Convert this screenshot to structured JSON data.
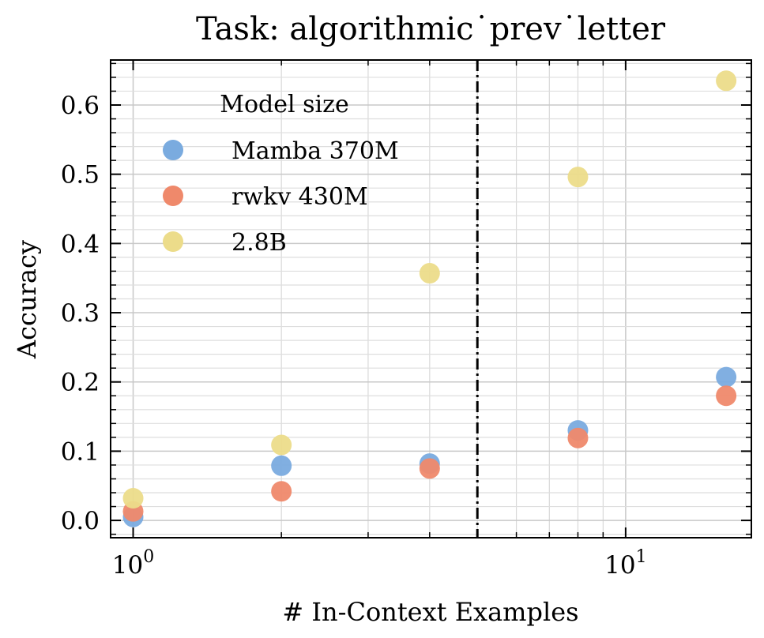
{
  "chart_data": {
    "type": "scatter",
    "title": "Task: algorithmic˙prev˙letter",
    "xlabel": "# In-Context Examples",
    "ylabel": "Accuracy",
    "xscale": "log",
    "xlim": [
      0.9,
      18
    ],
    "ylim": [
      -0.025,
      0.665
    ],
    "x_ticks": [
      1,
      10
    ],
    "x_tick_labels": [
      {
        "base": "10",
        "exp": "0"
      },
      {
        "base": "10",
        "exp": "1"
      }
    ],
    "y_ticks": [
      0.0,
      0.1,
      0.2,
      0.3,
      0.4,
      0.5,
      0.6
    ],
    "y_tick_labels": [
      "0.0",
      "0.1",
      "0.2",
      "0.3",
      "0.4",
      "0.5",
      "0.6"
    ],
    "grid": true,
    "vline": {
      "x": 5,
      "style": "dash-dot",
      "color": "#000000"
    },
    "legend": {
      "title": "Model size",
      "placement": "upper-left"
    },
    "series": [
      {
        "name": "Mamba 370M",
        "color": "#7aabdf",
        "x": [
          1,
          2,
          4,
          8,
          16
        ],
        "y": [
          0.005,
          0.079,
          0.082,
          0.13,
          0.207
        ]
      },
      {
        "name": "rwkv 430M",
        "color": "#ef896b",
        "x": [
          1,
          2,
          4,
          8,
          16
        ],
        "y": [
          0.013,
          0.042,
          0.075,
          0.119,
          0.18
        ]
      },
      {
        "name": "2.8B",
        "color": "#ecdc8a",
        "x": [
          1,
          2,
          4,
          8,
          16
        ],
        "y": [
          0.032,
          0.109,
          0.357,
          0.496,
          0.635
        ]
      }
    ]
  }
}
